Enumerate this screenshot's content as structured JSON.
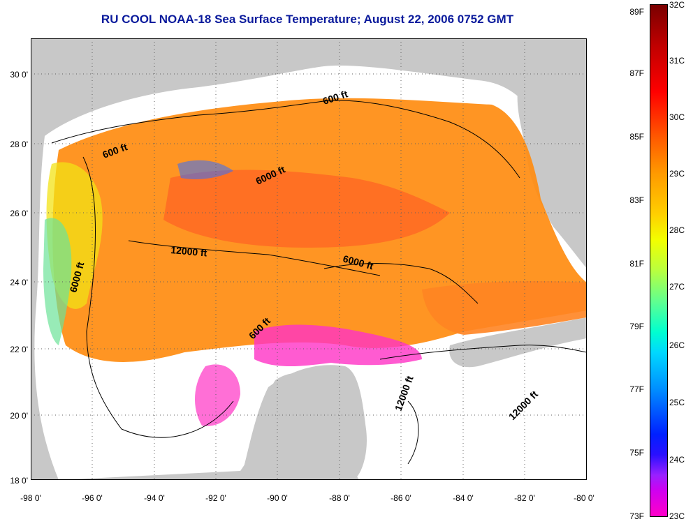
{
  "title": "RU COOL  NOAA-18  Sea Surface Temperature;  August 22, 2006 0752 GMT",
  "axes": {
    "y_ticks": [
      "30 0'",
      "28 0'",
      "26 0'",
      "24 0'",
      "22 0'",
      "20 0'",
      "18 0'"
    ],
    "x_ticks": [
      "-98 0'",
      "-96 0'",
      "-94 0'",
      "-92 0'",
      "-90 0'",
      "-88 0'",
      "-86 0'",
      "-84 0'",
      "-82 0'",
      "-80 0'"
    ]
  },
  "contour_labels": [
    "600 ft",
    "600 ft",
    "6000 ft",
    "12000 ft",
    "6000 ft",
    "6000 ft",
    "600 ft",
    "12000 ft",
    "12000 ft"
  ],
  "colorbar": {
    "fahrenheit": [
      "89F",
      "87F",
      "85F",
      "83F",
      "81F",
      "79F",
      "77F",
      "75F",
      "73F"
    ],
    "celsius": [
      "32C",
      "31C",
      "30C",
      "29C",
      "28C",
      "27C",
      "26C",
      "25C",
      "24C",
      "23C"
    ]
  },
  "colors": {
    "title": "#0a1a9c",
    "land": "#c8c8c8",
    "cloud_mask": "#ffffff",
    "warm_water": "#ff8c10"
  }
}
